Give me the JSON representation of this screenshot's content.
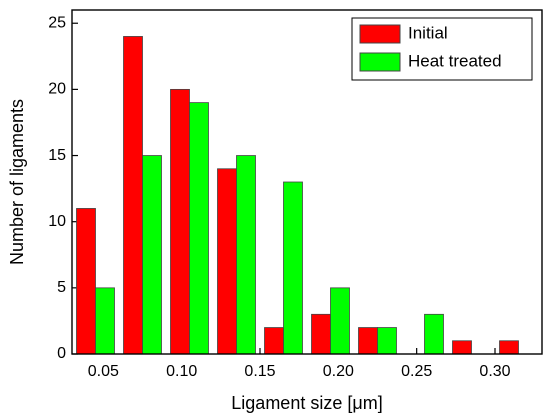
{
  "chart_data": {
    "type": "bar",
    "xlabel": "Ligament size [μm]",
    "ylabel": "Number of ligaments",
    "x": [
      0.045,
      0.075,
      0.105,
      0.135,
      0.165,
      0.195,
      0.225,
      0.255,
      0.285,
      0.315
    ],
    "series": [
      {
        "name": "Initial",
        "color": "#ff0000",
        "values": [
          11,
          24,
          20,
          14,
          2,
          3,
          2,
          0,
          1,
          1
        ]
      },
      {
        "name": "Heat treated",
        "color": "#00ff00",
        "values": [
          5,
          15,
          19,
          15,
          13,
          5,
          2,
          3,
          0,
          0
        ]
      }
    ],
    "xlim": [
      0.03,
      0.33
    ],
    "ylim": [
      0,
      26
    ],
    "xticks": [
      0.05,
      {
        "value": 0.1,
        "label": "0.10"
      },
      0.15,
      {
        "value": 0.2,
        "label": "0.20"
      },
      0.25,
      {
        "value": 0.3,
        "label": "0.30"
      }
    ],
    "yticks": [
      0,
      5,
      10,
      15,
      20,
      25
    ],
    "legend": "upper right"
  }
}
